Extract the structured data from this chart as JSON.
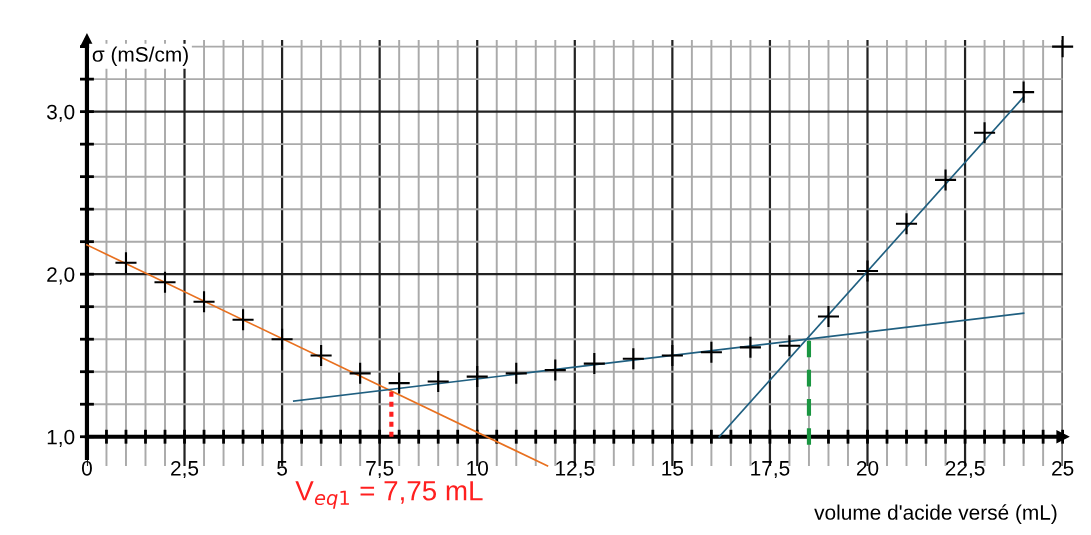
{
  "chart_data": {
    "type": "scatter",
    "ylabel": "σ (mS/cm)",
    "xlabel": "volume d'acide versé (mL)",
    "annotations": [
      {
        "text": "V$_{eq1}$ = 7,75 mL",
        "x": 7.75,
        "y": 1.0
      }
    ],
    "xlim": [
      0,
      25
    ],
    "ylim": [
      0.82,
      3.44
    ],
    "xticks": [
      0,
      {
        "value": 0.5,
        "label": null
      },
      {
        "value": 1,
        "label": null
      },
      {
        "value": 1.5,
        "label": null
      },
      {
        "value": 2,
        "label": null
      },
      {
        "value": 2.5,
        "label": "2,5"
      },
      {
        "value": 3,
        "label": null
      },
      {
        "value": 3.5,
        "label": null
      },
      {
        "value": 4,
        "label": null
      },
      {
        "value": 4.5,
        "label": null
      },
      5,
      {
        "value": 5.5,
        "label": null
      },
      {
        "value": 6,
        "label": null
      },
      {
        "value": 6.5,
        "label": null
      },
      {
        "value": 7,
        "label": null
      },
      {
        "value": 7.5,
        "label": "7,5"
      },
      {
        "value": 8,
        "label": null
      },
      {
        "value": 8.5,
        "label": null
      },
      {
        "value": 9,
        "label": null
      },
      {
        "value": 9.5,
        "label": null
      },
      10,
      {
        "value": 10.5,
        "label": null
      },
      {
        "value": 11,
        "label": null
      },
      {
        "value": 11.5,
        "label": null
      },
      {
        "value": 12,
        "label": null
      },
      {
        "value": 12.5,
        "label": "12,5"
      },
      {
        "value": 13,
        "label": null
      },
      {
        "value": 13.5,
        "label": null
      },
      {
        "value": 14,
        "label": null
      },
      {
        "value": 14.5,
        "label": null
      },
      15,
      {
        "value": 15.5,
        "label": null
      },
      {
        "value": 16,
        "label": null
      },
      {
        "value": 16.5,
        "label": null
      },
      {
        "value": 17,
        "label": null
      },
      {
        "value": 17.5,
        "label": "17,5"
      },
      {
        "value": 18,
        "label": null
      },
      {
        "value": 18.5,
        "label": null
      },
      {
        "value": 19,
        "label": null
      },
      {
        "value": 19.5,
        "label": null
      },
      20,
      {
        "value": 20.5,
        "label": null
      },
      {
        "value": 21,
        "label": null
      },
      {
        "value": 21.5,
        "label": null
      },
      {
        "value": 22,
        "label": null
      },
      {
        "value": 22.5,
        "label": "22,5"
      },
      {
        "value": 23,
        "label": null
      },
      {
        "value": 23.5,
        "label": null
      },
      {
        "value": 24,
        "label": null
      },
      {
        "value": 24.5,
        "label": null
      },
      25
    ],
    "yticks": [
      {
        "value": 1.0,
        "label": "1,0"
      },
      {
        "value": 1.2,
        "label": null
      },
      {
        "value": 1.4,
        "label": null
      },
      {
        "value": 1.6,
        "label": null
      },
      {
        "value": 1.8,
        "label": null
      },
      {
        "value": 2.0,
        "label": "2,0"
      },
      {
        "value": 2.2,
        "label": null
      },
      {
        "value": 2.4,
        "label": null
      },
      {
        "value": 2.6,
        "label": null
      },
      {
        "value": 2.8,
        "label": null
      },
      {
        "value": 3.0,
        "label": "3,0"
      },
      {
        "value": 3.2,
        "label": null
      },
      {
        "value": 3.4,
        "label": null
      }
    ],
    "grid": true,
    "series": [
      {
        "marker": "cross",
        "color": "#000000",
        "x": [
          1,
          2,
          3,
          4,
          5,
          6,
          7,
          8,
          9,
          10,
          11,
          12,
          13,
          14,
          15,
          16,
          17,
          18,
          19,
          20,
          21,
          22,
          23,
          24,
          25
        ],
        "values": [
          2.07,
          1.95,
          1.83,
          1.72,
          1.6,
          1.5,
          1.39,
          1.33,
          1.34,
          1.37,
          1.39,
          1.41,
          1.45,
          1.48,
          1.5,
          1.52,
          1.55,
          1.56,
          1.74,
          2.02,
          2.31,
          2.58,
          2.87,
          3.12,
          3.4
        ]
      },
      {
        "type": "line",
        "color": "#e8701f",
        "x": [
          0,
          11.8
        ],
        "values": [
          2.18,
          0.82
        ]
      },
      {
        "type": "line",
        "color": "#1f5f80",
        "x": [
          5.3,
          24
        ],
        "values": [
          1.22,
          1.76
        ]
      },
      {
        "type": "line",
        "color": "#1f5f80",
        "x": [
          16.2,
          24
        ],
        "values": [
          1.0,
          3.09
        ]
      },
      {
        "type": "line",
        "color": "#ff2020",
        "line_style": "dotted",
        "x": [
          7.8,
          7.8
        ],
        "values": [
          1.0,
          1.3
        ]
      },
      {
        "type": "line",
        "color": "#1a9641",
        "line_style": "dashed",
        "x": [
          18.5,
          18.5
        ],
        "values": [
          0.95,
          1.6
        ]
      }
    ]
  }
}
